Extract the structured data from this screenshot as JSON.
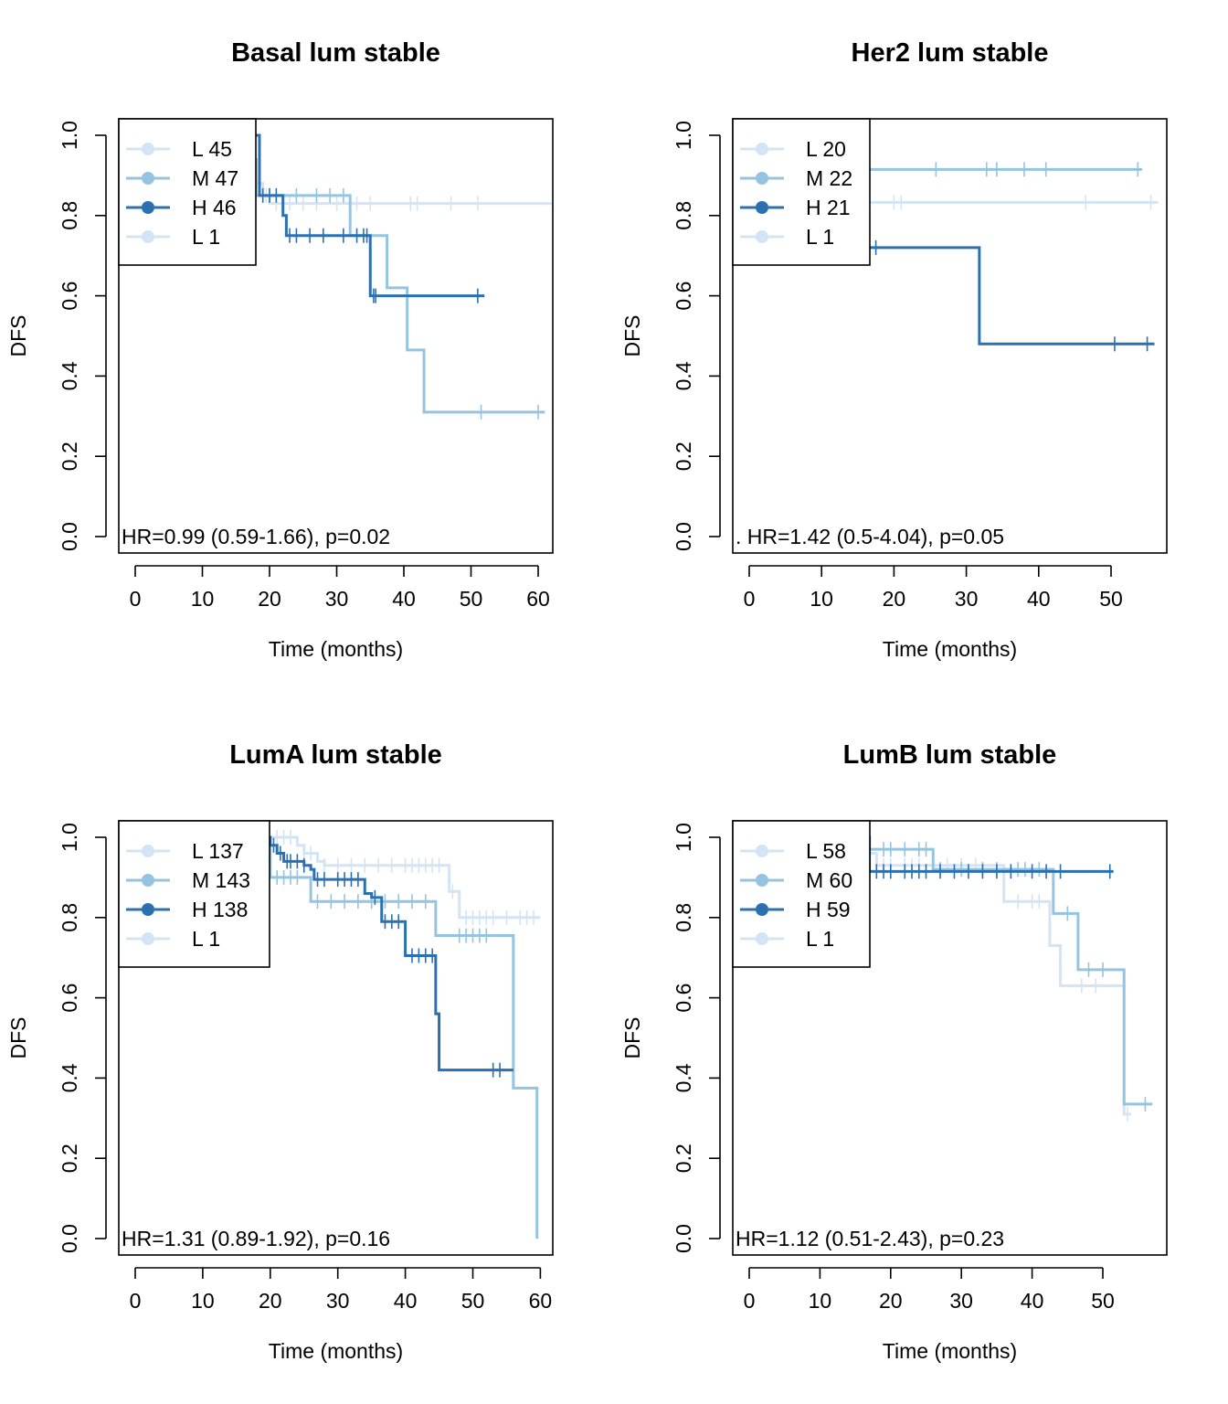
{
  "chart_data": [
    {
      "type": "line",
      "title": "Basal lum stable",
      "xlabel": "Time (months)",
      "ylabel": "DFS",
      "xlim": [
        0,
        60
      ],
      "ylim": [
        0,
        1
      ],
      "xticks": [
        0,
        10,
        20,
        30,
        40,
        50,
        60
      ],
      "yticks": [
        0.0,
        0.2,
        0.4,
        0.6,
        0.8,
        1.0
      ],
      "legend_position": "top-left",
      "legend": [
        {
          "label": "L 45",
          "color": "#d3e4f4"
        },
        {
          "label": "M 47",
          "color": "#94c4df"
        },
        {
          "label": "H 46",
          "color": "#2b71b2"
        },
        {
          "label": "L 1",
          "color": "#d3e4f4"
        }
      ],
      "annotation": "HR=0.99 (0.59-1.66), p=0.02",
      "series": [
        {
          "color": "#d3e4f4",
          "steps": [
            [
              0,
              1.0
            ],
            [
              17,
              0.93
            ],
            [
              18,
              0.88
            ],
            [
              19,
              0.85
            ],
            [
              20,
              0.83
            ],
            [
              62,
              0.83
            ]
          ],
          "censors": [
            18.5,
            19.5,
            21,
            23,
            25,
            27,
            30,
            33,
            35,
            41,
            42,
            47,
            51
          ]
        },
        {
          "color": "#94c4df",
          "steps": [
            [
              0,
              1.0
            ],
            [
              17,
              0.94
            ],
            [
              18,
              0.85
            ],
            [
              32,
              0.75
            ],
            [
              37.5,
              0.62
            ],
            [
              40.5,
              0.465
            ],
            [
              43,
              0.31
            ],
            [
              61,
              0.31
            ]
          ],
          "censors": [
            20,
            24,
            27,
            29,
            31,
            51.5,
            60
          ]
        },
        {
          "color": "#2b71b2",
          "steps": [
            [
              0,
              1.0
            ],
            [
              18.5,
              0.85
            ],
            [
              22,
              0.8
            ],
            [
              22.5,
              0.75
            ],
            [
              35,
              0.6
            ],
            [
              52,
              0.6
            ]
          ],
          "censors": [
            19,
            20,
            21,
            23,
            24,
            26,
            28,
            31,
            33,
            34,
            34.5,
            35.5,
            35.8,
            51
          ]
        }
      ]
    },
    {
      "type": "line",
      "title": "Her2 lum stable",
      "xlabel": "Time (months)",
      "ylabel": "DFS",
      "xlim": [
        0,
        55
      ],
      "ylim": [
        0,
        1
      ],
      "xticks": [
        0,
        10,
        20,
        30,
        40,
        50
      ],
      "yticks": [
        0.0,
        0.2,
        0.4,
        0.6,
        0.8,
        1.0
      ],
      "legend_position": "top-left",
      "legend": [
        {
          "label": "L 20",
          "color": "#d3e4f4"
        },
        {
          "label": "M 22",
          "color": "#94c4df"
        },
        {
          "label": "H 21",
          "color": "#2b71b2"
        },
        {
          "label": "L 1",
          "color": "#d3e4f4"
        }
      ],
      "annotation": ". HR=1.42 (0.5-4.04), p=0.05",
      "series": [
        {
          "color": "#d3e4f4",
          "steps": [
            [
              0,
              1.0
            ],
            [
              10,
              0.833
            ],
            [
              56.5,
              0.833
            ]
          ],
          "censors": [
            20,
            21,
            46.5,
            55.5
          ]
        },
        {
          "color": "#94c4df",
          "steps": [
            [
              0,
              1.0
            ],
            [
              10,
              0.915
            ],
            [
              54.3,
              0.915
            ]
          ],
          "censors": [
            25.8,
            32.8,
            34.2,
            38,
            41,
            53.7
          ]
        },
        {
          "color": "#2b71b2",
          "steps": [
            [
              0,
              1.0
            ],
            [
              10,
              0.72
            ],
            [
              31.8,
              0.72
            ],
            [
              31.8,
              0.48
            ],
            [
              56,
              0.48
            ]
          ],
          "censors": [
            16,
            17.5,
            50.5,
            55
          ]
        }
      ]
    },
    {
      "type": "line",
      "title": "LumA lum stable",
      "xlabel": "Time (months)",
      "ylabel": "DFS",
      "xlim": [
        0,
        60
      ],
      "ylim": [
        0,
        1
      ],
      "xticks": [
        0,
        10,
        20,
        30,
        40,
        50,
        60
      ],
      "yticks": [
        0.0,
        0.2,
        0.4,
        0.6,
        0.8,
        1.0
      ],
      "legend_position": "top-left",
      "legend": [
        {
          "label": "L 137",
          "color": "#d3e4f4"
        },
        {
          "label": "M 143",
          "color": "#94c4df"
        },
        {
          "label": "H 138",
          "color": "#2b71b2"
        },
        {
          "label": "L 1",
          "color": "#d3e4f4"
        }
      ],
      "annotation": "HR=1.31 (0.89-1.92), p=0.16",
      "series": [
        {
          "color": "#d3e4f4",
          "steps": [
            [
              0,
              1.0
            ],
            [
              24,
              0.98
            ],
            [
              25,
              0.96
            ],
            [
              27,
              0.94
            ],
            [
              28,
              0.93
            ],
            [
              46.5,
              0.93
            ],
            [
              46.5,
              0.865
            ],
            [
              48,
              0.8
            ],
            [
              60,
              0.8
            ]
          ],
          "censors": [
            21,
            22,
            23,
            25,
            26,
            28,
            30,
            32,
            34,
            36,
            38,
            40,
            41,
            42,
            43,
            44,
            45,
            47,
            49,
            50,
            51,
            52,
            53,
            55,
            57,
            58,
            59
          ]
        },
        {
          "color": "#94c4df",
          "steps": [
            [
              0,
              1.0
            ],
            [
              20,
              0.9
            ],
            [
              26,
              0.84
            ],
            [
              44.5,
              0.84
            ],
            [
              44.5,
              0.755
            ],
            [
              56,
              0.755
            ],
            [
              56,
              0.375
            ],
            [
              59.5,
              0.375
            ],
            [
              59.5,
              0.0
            ]
          ],
          "censors": [
            21,
            22,
            23,
            24,
            27,
            29,
            31,
            33,
            35,
            37,
            39,
            41,
            43,
            48,
            49,
            50,
            51,
            52
          ]
        },
        {
          "color": "#2b71b2",
          "steps": [
            [
              0,
              1.0
            ],
            [
              20,
              0.98
            ],
            [
              21,
              0.96
            ],
            [
              22,
              0.94
            ],
            [
              25,
              0.93
            ],
            [
              26,
              0.92
            ],
            [
              26.5,
              0.895
            ],
            [
              34,
              0.86
            ],
            [
              35,
              0.85
            ],
            [
              36.5,
              0.79
            ],
            [
              40,
              0.705
            ],
            [
              44.5,
              0.56
            ],
            [
              45,
              0.42
            ],
            [
              56,
              0.42
            ]
          ],
          "censors": [
            20.5,
            21.5,
            22.5,
            23,
            24,
            25,
            27,
            28,
            30,
            31,
            32,
            33,
            35.5,
            37,
            38,
            39,
            41,
            42,
            43,
            44,
            53,
            54
          ]
        }
      ]
    },
    {
      "type": "line",
      "title": "LumB lum stable",
      "xlabel": "Time (months)",
      "ylabel": "DFS",
      "xlim": [
        0,
        55
      ],
      "ylim": [
        0,
        1
      ],
      "xticks": [
        0,
        10,
        20,
        30,
        40,
        50
      ],
      "yticks": [
        0.0,
        0.2,
        0.4,
        0.6,
        0.8,
        1.0
      ],
      "legend_position": "top-left",
      "legend": [
        {
          "label": "L 58",
          "color": "#d3e4f4"
        },
        {
          "label": "M 60",
          "color": "#94c4df"
        },
        {
          "label": "H 59",
          "color": "#2b71b2"
        },
        {
          "label": "L 1",
          "color": "#d3e4f4"
        }
      ],
      "annotation": "HR=1.12 (0.51-2.43), p=0.23",
      "series": [
        {
          "color": "#d3e4f4",
          "steps": [
            [
              0,
              1.0
            ],
            [
              17,
              0.96
            ],
            [
              18,
              0.93
            ],
            [
              35.5,
              0.93
            ],
            [
              36,
              0.84
            ],
            [
              42,
              0.84
            ],
            [
              42.5,
              0.73
            ],
            [
              44,
              0.63
            ],
            [
              52.5,
              0.63
            ],
            [
              53,
              0.31
            ],
            [
              54,
              0.31
            ]
          ],
          "censors": [
            18,
            19,
            20,
            22,
            23,
            24,
            26,
            28,
            30,
            32,
            38,
            40,
            41,
            47,
            49,
            53.5
          ]
        },
        {
          "color": "#94c4df",
          "steps": [
            [
              0,
              1.0
            ],
            [
              17,
              0.97
            ],
            [
              26,
              0.97
            ],
            [
              26,
              0.92
            ],
            [
              42.5,
              0.92
            ],
            [
              43,
              0.81
            ],
            [
              46,
              0.81
            ],
            [
              46.5,
              0.67
            ],
            [
              53,
              0.67
            ],
            [
              53,
              0.335
            ],
            [
              57,
              0.335
            ]
          ],
          "censors": [
            19,
            20,
            22,
            24,
            25,
            27,
            30,
            33,
            35,
            38,
            39,
            41,
            45,
            48,
            50,
            56
          ]
        },
        {
          "color": "#2b71b2",
          "steps": [
            [
              0,
              1.0
            ],
            [
              17,
              0.915
            ],
            [
              51.5,
              0.915
            ]
          ],
          "censors": [
            18,
            19,
            20,
            22,
            23,
            24,
            25,
            27,
            29,
            31,
            33,
            35,
            37,
            40,
            42,
            44,
            51
          ]
        }
      ]
    }
  ]
}
